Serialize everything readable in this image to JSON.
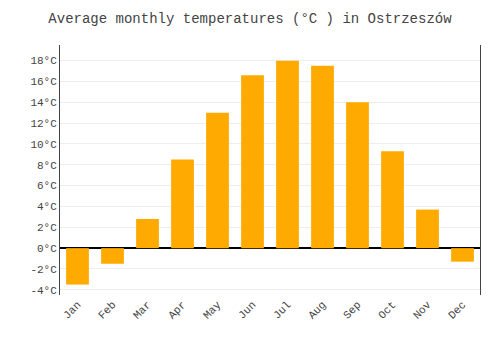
{
  "chart_data": {
    "type": "bar",
    "title": "Average monthly temperatures (°C ) in Ostrzeszów",
    "categories": [
      "Jan",
      "Feb",
      "Mar",
      "Apr",
      "May",
      "Jun",
      "Jul",
      "Aug",
      "Sep",
      "Oct",
      "Nov",
      "Dec"
    ],
    "values": [
      -3.5,
      -1.5,
      2.8,
      8.5,
      13.0,
      16.6,
      18.0,
      17.5,
      14.0,
      9.3,
      3.7,
      -1.3
    ],
    "color": "#FFAA00",
    "ylim": [
      -4.5,
      19.5
    ],
    "yticks": [
      {
        "value": -4,
        "label": "-4°C"
      },
      {
        "value": -2,
        "label": "-2°C"
      },
      {
        "value": 0,
        "label": "0°C"
      },
      {
        "value": 2,
        "label": "2°C"
      },
      {
        "value": 4,
        "label": "4°C"
      },
      {
        "value": 6,
        "label": "6°C"
      },
      {
        "value": 8,
        "label": "8°C"
      },
      {
        "value": 10,
        "label": "10°C"
      },
      {
        "value": 12,
        "label": "12°C"
      },
      {
        "value": 14,
        "label": "14°C"
      },
      {
        "value": 16,
        "label": "16°C"
      },
      {
        "value": 18,
        "label": "18°C"
      }
    ],
    "grid": true
  }
}
